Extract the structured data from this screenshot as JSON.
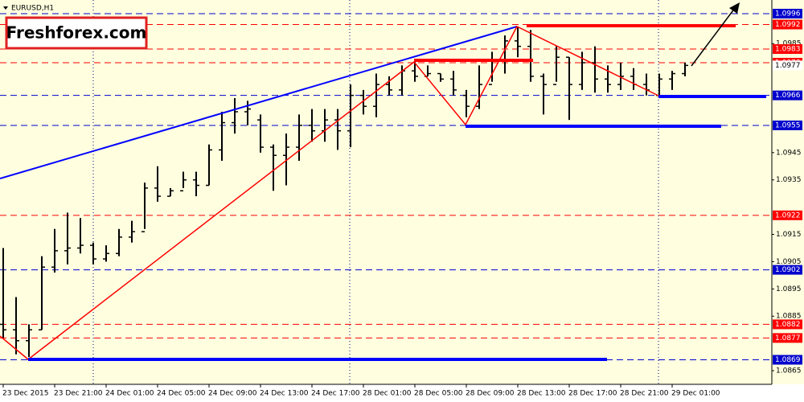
{
  "chart_data": {
    "type": "ohlc",
    "title": "EURUSD,H1",
    "logo": "Freshforex.com",
    "categories": [
      "23 Dec 2015",
      null,
      null,
      null,
      "23 Dec 21:00",
      null,
      null,
      null,
      "24 Dec 01:00",
      null,
      null,
      null,
      "24 Dec 05:00",
      null,
      null,
      null,
      "24 Dec 09:00",
      null,
      null,
      null,
      "24 Dec 13:00",
      null,
      null,
      null,
      "24 Dec 17:00",
      null,
      null,
      null,
      "28 Dec 01:00",
      null,
      null,
      null,
      "28 Dec 05:00",
      null,
      null,
      null,
      "28 Dec 09:00",
      null,
      null,
      null,
      "28 Dec 13:00",
      null,
      null,
      null,
      "28 Dec 17:00",
      null,
      null,
      null,
      "28 Dec 21:00",
      null,
      null,
      null,
      "29 Dec 01:00",
      null
    ],
    "open": [
      1.0882,
      1.088,
      1.0876,
      1.088,
      1.0903,
      1.0909,
      1.091,
      1.0911,
      1.0906,
      1.0908,
      1.0914,
      1.0916,
      1.0932,
      1.0929,
      1.0931,
      1.0935,
      1.0933,
      1.0946,
      1.0956,
      1.096,
      1.0957,
      1.0947,
      1.0944,
      1.0947,
      1.0955,
      1.0953,
      1.0957,
      1.0953,
      1.0966,
      1.0962,
      1.097,
      1.0968,
      1.0975,
      1.0973,
      1.0974,
      1.0972,
      1.0966,
      1.0962,
      1.097,
      1.0979,
      1.0986,
      1.0984,
      1.0973,
      1.097,
      1.098,
      1.097,
      1.0978,
      1.0972,
      1.097,
      1.0973,
      1.097,
      1.0966,
      1.0972,
      1.0974
    ],
    "high": [
      1.091,
      1.0892,
      1.0882,
      1.0907,
      1.0917,
      1.0923,
      1.0921,
      1.0912,
      1.0911,
      1.0917,
      1.092,
      1.0934,
      1.094,
      1.0932,
      1.0938,
      1.0938,
      1.0948,
      1.096,
      1.0965,
      1.0964,
      1.0959,
      1.0948,
      1.0952,
      1.0959,
      1.0961,
      1.0961,
      1.0961,
      1.097,
      1.0968,
      1.0974,
      1.0973,
      1.0977,
      1.0979,
      1.0977,
      1.0974,
      1.0975,
      1.0968,
      1.0977,
      1.0982,
      1.0988,
      1.0991,
      1.099,
      1.0974,
      1.0984,
      1.098,
      1.0982,
      1.0984,
      1.0977,
      1.0978,
      1.0976,
      1.0974,
      1.0974,
      1.0975,
      1.0978
    ],
    "low": [
      1.0877,
      1.0871,
      1.087,
      1.088,
      1.0901,
      1.0904,
      1.0908,
      1.0904,
      1.0905,
      1.0907,
      1.0912,
      1.0917,
      1.0927,
      1.0929,
      1.0932,
      1.0929,
      1.0933,
      1.0942,
      1.0952,
      1.0955,
      1.0945,
      1.0931,
      1.0933,
      1.0942,
      1.0949,
      1.0949,
      1.0946,
      1.0947,
      1.0959,
      1.0958,
      1.0966,
      1.0966,
      1.0971,
      1.0973,
      1.0971,
      1.0966,
      1.0958,
      1.0961,
      1.0971,
      1.0974,
      1.098,
      1.0971,
      1.0959,
      1.0971,
      1.0957,
      1.0968,
      1.0967,
      1.0967,
      1.0968,
      1.0968,
      1.0966,
      1.0965,
      1.0968,
      1.0973
    ],
    "close": [
      1.088,
      1.0876,
      1.088,
      1.0903,
      1.0909,
      1.091,
      1.0911,
      1.0906,
      1.0908,
      1.0914,
      1.0916,
      1.0932,
      1.0929,
      1.0931,
      1.0935,
      1.0933,
      1.0946,
      1.0956,
      1.096,
      1.0961,
      1.0947,
      1.0944,
      1.0947,
      1.0955,
      1.0953,
      1.0957,
      1.0953,
      1.0966,
      1.0962,
      1.097,
      1.0968,
      1.0975,
      1.0973,
      1.0974,
      1.0972,
      1.0968,
      1.0962,
      1.097,
      1.0979,
      1.0986,
      1.0984,
      1.0973,
      1.097,
      1.098,
      1.097,
      1.0978,
      1.0972,
      1.097,
      1.0973,
      1.097,
      1.0968,
      1.0972,
      1.0974,
      1.0977
    ],
    "color": "#000000",
    "ylim": [
      1.086,
      1.1001
    ],
    "yticks": [
      1.0865,
      1.0885,
      1.0895,
      1.0905,
      1.0915,
      1.0935,
      1.0945,
      1.0985
    ],
    "levels": [
      {
        "value": 1.0996,
        "color": "#0000cd"
      },
      {
        "value": 1.0992,
        "color": "#ff0000"
      },
      {
        "value": 1.0983,
        "color": "#ff0000"
      },
      {
        "value": 1.0978,
        "color": "#ff0000"
      },
      {
        "value": 1.0966,
        "color": "#0000cd"
      },
      {
        "value": 1.0955,
        "color": "#0000cd"
      },
      {
        "value": 1.0922,
        "color": "#ff0000"
      },
      {
        "value": 1.0902,
        "color": "#0000cd"
      },
      {
        "value": 1.0882,
        "color": "#ff0000"
      },
      {
        "value": 1.0877,
        "color": "#ff0000"
      },
      {
        "value": 1.0869,
        "color": "#0000cd"
      }
    ]
  }
}
